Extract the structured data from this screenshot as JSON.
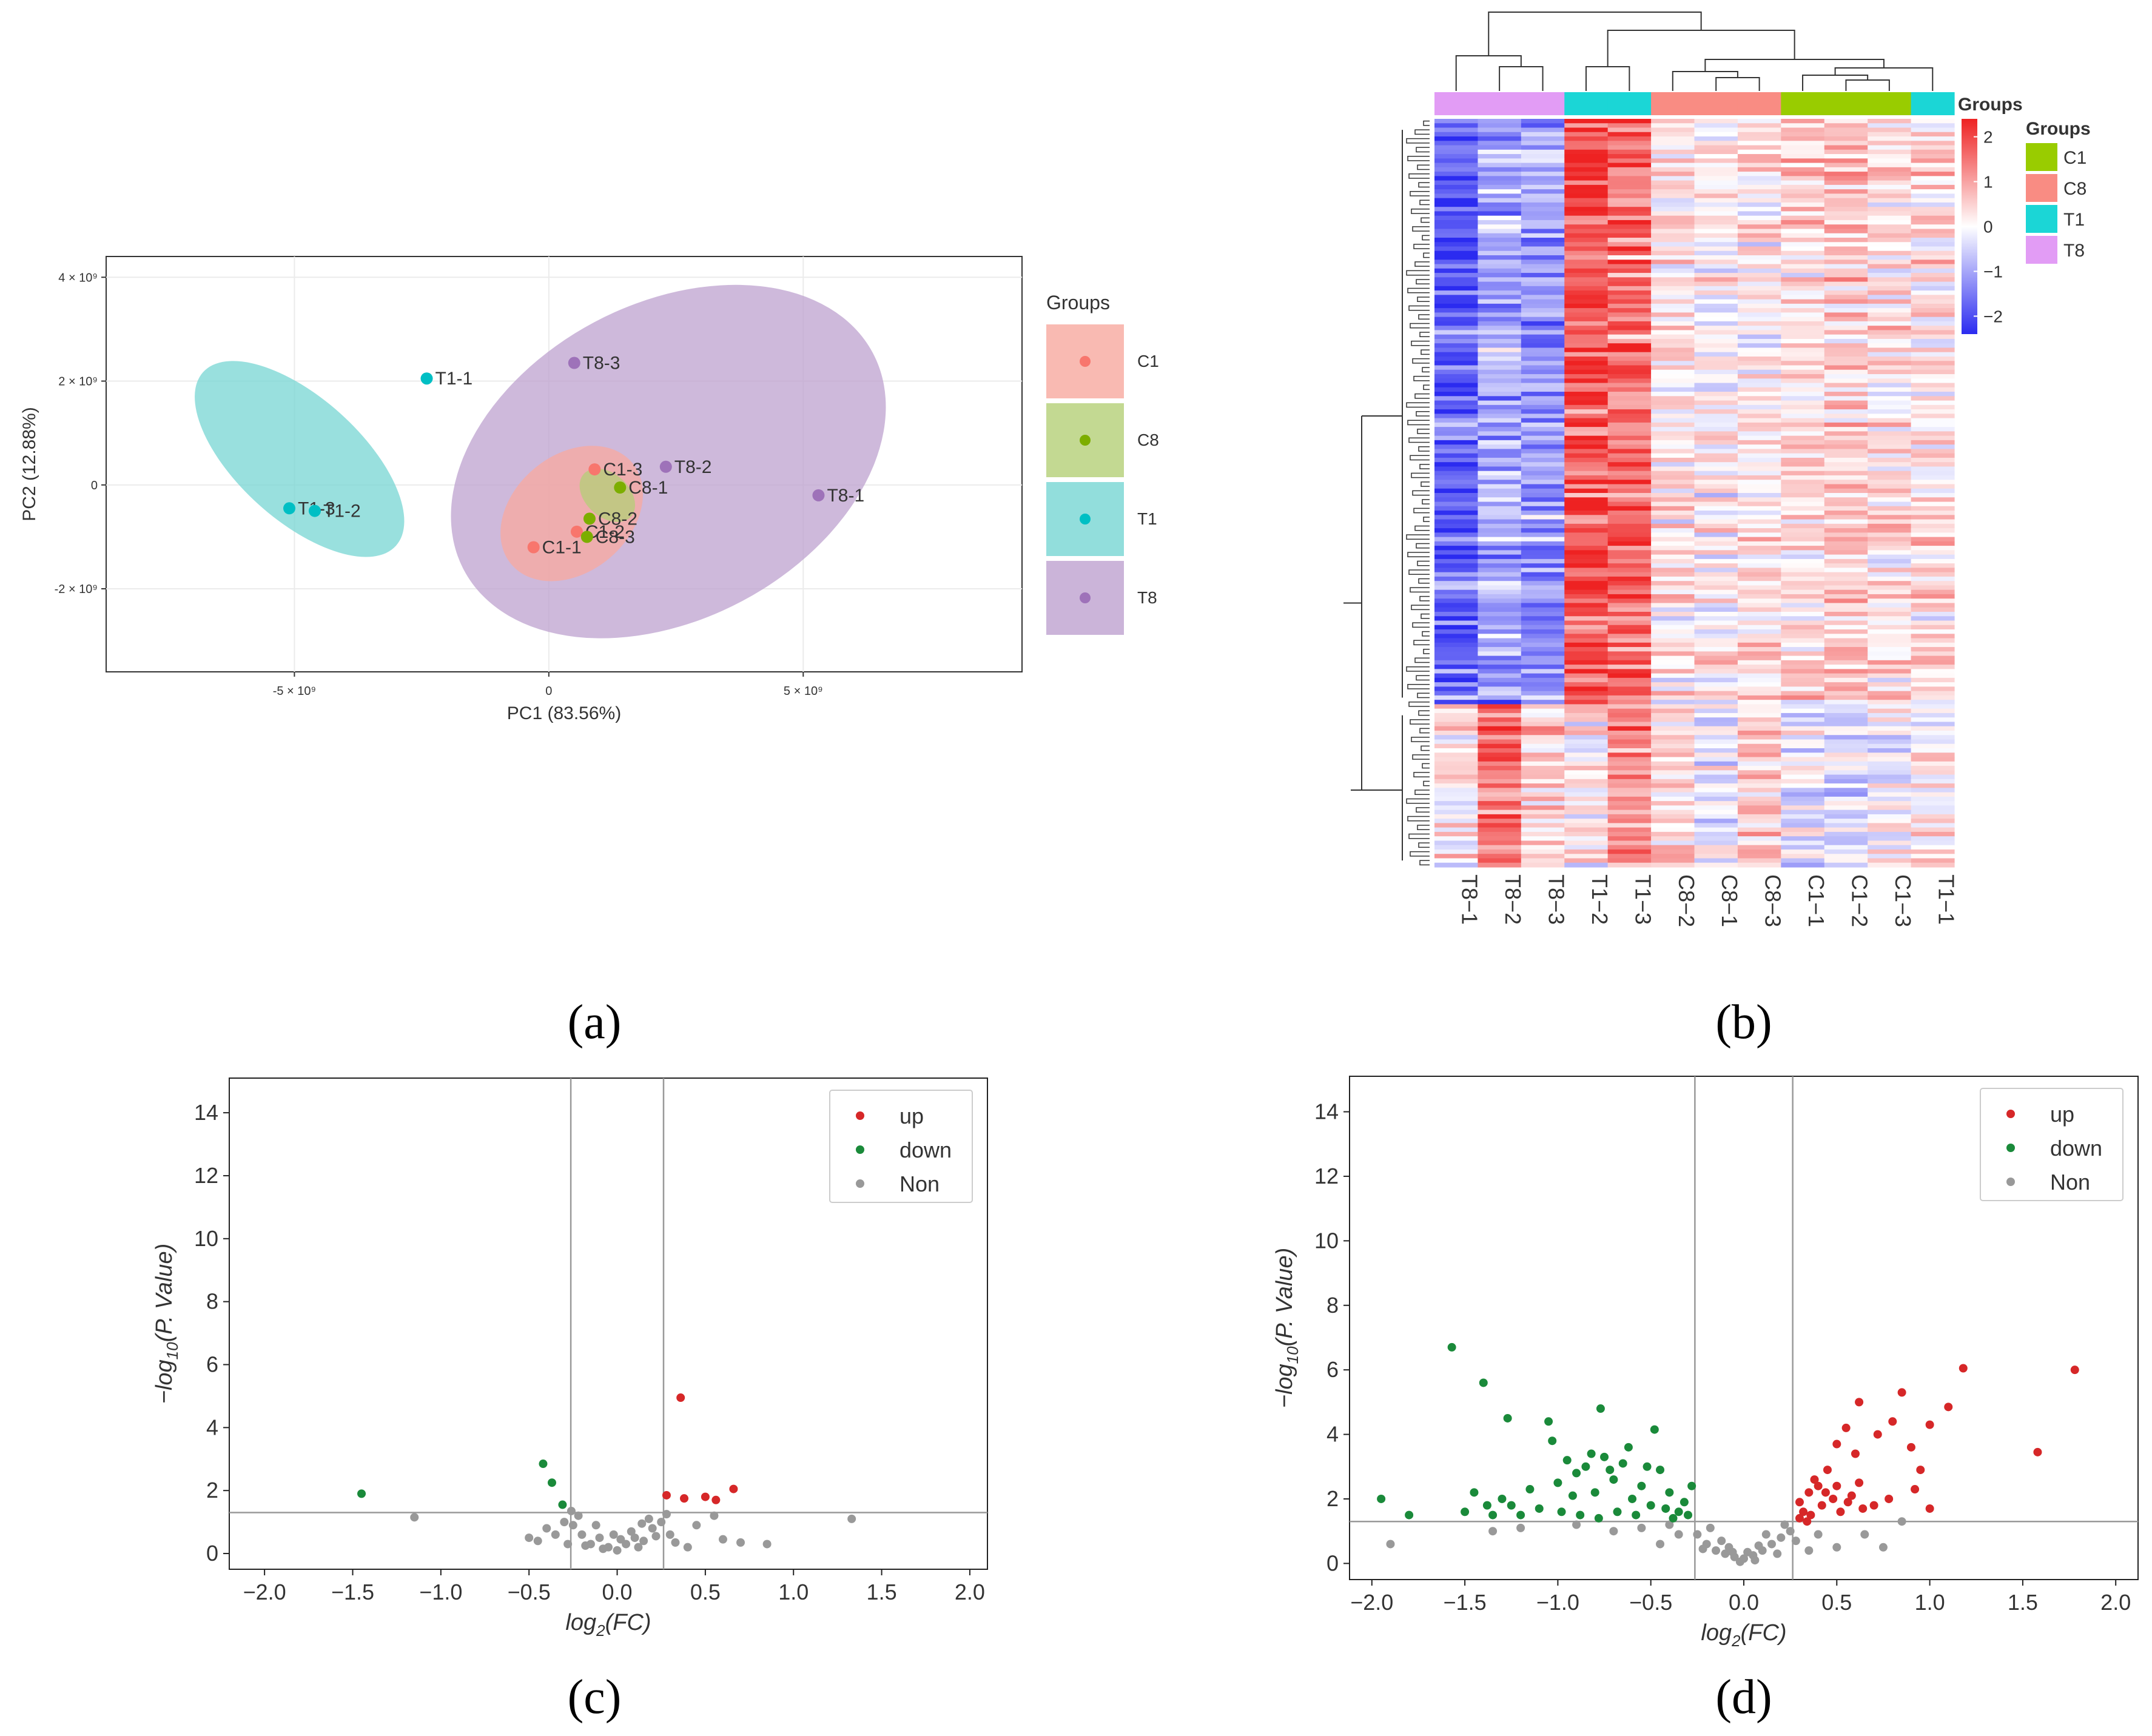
{
  "panels": {
    "a": "(a)",
    "b": "(b)",
    "c": "(c)",
    "d": "(d)"
  },
  "chart_data": [
    {
      "id": "pca",
      "type": "scatter",
      "xlabel": "PC1 (83.56%)",
      "ylabel": "PC2 (12.88%)",
      "xlim": [
        -8.7,
        9.3
      ],
      "ylim": [
        -3.6,
        4.4
      ],
      "xticks": [
        {
          "v": -5,
          "label": "-5 × 10⁹"
        },
        {
          "v": 0,
          "label": "0"
        },
        {
          "v": 5,
          "label": "5 × 10⁹"
        }
      ],
      "yticks": [
        {
          "v": 4,
          "label": "4 × 10⁹"
        },
        {
          "v": 2,
          "label": "2 × 10⁹"
        },
        {
          "v": 0,
          "label": "0"
        },
        {
          "v": -2,
          "label": "-2 × 10⁹"
        }
      ],
      "legend_title": "Groups",
      "groups": [
        {
          "name": "C1",
          "color": "#F8766D",
          "fill": "#F8A99F"
        },
        {
          "name": "C8",
          "color": "#7CAE00",
          "fill": "#B4CF77"
        },
        {
          "name": "T1",
          "color": "#00BFC4",
          "fill": "#77D6D3"
        },
        {
          "name": "T8",
          "color": "#9E72B9",
          "fill": "#BEA1CF"
        }
      ],
      "ellipses": [
        {
          "group": "T8",
          "cx": 2.35,
          "cy": 0.45,
          "rx": 9.1,
          "ry": 1.6,
          "angle": -28.0
        },
        {
          "group": "T1",
          "cx": -4.9,
          "cy": 0.5,
          "rx": 5.1,
          "ry": 0.62,
          "angle": 42.0
        },
        {
          "group": "C1",
          "cx": 0.45,
          "cy": -0.55,
          "rx": 2.3,
          "ry": 0.8,
          "angle": 50.0
        },
        {
          "group": "C8",
          "cx": 1.15,
          "cy": -0.2,
          "rx": 1.25,
          "ry": 0.22,
          "angle": 42.0
        }
      ],
      "points": [
        {
          "label": "T1-1",
          "group": "T1",
          "x": -2.4,
          "y": 2.05
        },
        {
          "label": "T1-3",
          "group": "T1",
          "x": -5.1,
          "y": -0.45
        },
        {
          "label": "T1-2",
          "group": "T1",
          "x": -4.6,
          "y": -0.5
        },
        {
          "label": "T8-3",
          "group": "T8",
          "x": 0.5,
          "y": 2.35
        },
        {
          "label": "T8-2",
          "group": "T8",
          "x": 2.3,
          "y": 0.35
        },
        {
          "label": "T8-1",
          "group": "T8",
          "x": 5.3,
          "y": -0.2
        },
        {
          "label": "C1-3",
          "group": "C1",
          "x": 0.9,
          "y": 0.3
        },
        {
          "label": "C1-1",
          "group": "C1",
          "x": -0.3,
          "y": -1.2
        },
        {
          "label": "C1-2",
          "group": "C1",
          "x": 0.55,
          "y": -0.9
        },
        {
          "label": "C8-1",
          "group": "C8",
          "x": 1.4,
          "y": -0.05
        },
        {
          "label": "C8-2",
          "group": "C8",
          "x": 0.8,
          "y": -0.65
        },
        {
          "label": "C8-3",
          "group": "C8",
          "x": 0.75,
          "y": -1.0
        }
      ]
    },
    {
      "id": "heatmap",
      "type": "heatmap",
      "columns": [
        "T8−1",
        "T8−2",
        "T8−3",
        "T1−2",
        "T1−3",
        "C8−2",
        "C8−1",
        "C8−3",
        "C1−1",
        "C1−2",
        "C1−3",
        "T1−1"
      ],
      "column_groups": [
        "T8",
        "T8",
        "T8",
        "T1",
        "T1",
        "C8",
        "C8",
        "C8",
        "C1",
        "C1",
        "C1",
        "T1"
      ],
      "n_rows": 170,
      "row_cluster_split": 0.78,
      "block_profile_top": [
        -1.9,
        -1.1,
        -1.2,
        1.9,
        1.7,
        0.2,
        0.1,
        0.2,
        0.4,
        0.5,
        0.3,
        0.3
      ],
      "block_profile_bottom": [
        0.2,
        1.6,
        0.5,
        0.1,
        1.2,
        0.4,
        -0.2,
        0.5,
        -0.3,
        -0.4,
        -0.1,
        0.2
      ],
      "color_scale": {
        "low": "#2B2BF0",
        "mid": "#FFFFFF",
        "high": "#EE2222",
        "min": -2.4,
        "max": 2.4
      },
      "colorbar_title": "Groups",
      "colorbar_ticks": [
        2,
        1,
        0,
        -1,
        -2
      ],
      "colorbar_tick_labels": [
        "2",
        "1",
        "0",
        "−1",
        "−2"
      ],
      "legend_title": "Groups",
      "legend": [
        {
          "name": "C1",
          "color": "#99CC00"
        },
        {
          "name": "C8",
          "color": "#F98C83"
        },
        {
          "name": "T1",
          "color": "#1BD6D6"
        },
        {
          "name": "T8",
          "color": "#E29CF5"
        }
      ]
    },
    {
      "id": "volcano-c",
      "type": "scatter",
      "xlabel_main": "log",
      "xlabel_sub": "2",
      "xlabel_tail": "(FC)",
      "ylabel_pre": "−log",
      "ylabel_sub": "10",
      "ylabel_tail": "(P. Value)",
      "xlim": [
        -2.2,
        2.1
      ],
      "ylim": [
        -0.5,
        15.1
      ],
      "xticks": [
        -2.0,
        -1.5,
        -1.0,
        -0.5,
        0.0,
        0.5,
        1.0,
        1.5,
        2.0
      ],
      "xtick_labels": [
        "−2.0",
        "−1.5",
        "−1.0",
        "−0.5",
        "0.0",
        "0.5",
        "1.0",
        "1.5",
        "2.0"
      ],
      "yticks": [
        0,
        2,
        4,
        6,
        8,
        10,
        12,
        14
      ],
      "ytick_labels": [
        "0",
        "2",
        "4",
        "6",
        "8",
        "10",
        "12",
        "14"
      ],
      "vlines": [
        -0.263,
        0.263
      ],
      "hline": 1.3,
      "legend": [
        {
          "name": "up",
          "color": "#D62728"
        },
        {
          "name": "down",
          "color": "#1A8A3A"
        },
        {
          "name": "Non",
          "color": "#999999"
        }
      ],
      "up": [
        [
          0.36,
          4.95
        ],
        [
          0.66,
          2.05
        ],
        [
          0.5,
          1.8
        ],
        [
          0.56,
          1.7
        ],
        [
          0.28,
          1.85
        ],
        [
          0.38,
          1.75
        ]
      ],
      "down": [
        [
          -1.45,
          1.9
        ],
        [
          -0.42,
          2.85
        ],
        [
          -0.37,
          2.25
        ],
        [
          -0.31,
          1.55
        ]
      ],
      "non": [
        [
          -1.15,
          1.15
        ],
        [
          1.33,
          1.1
        ],
        [
          0.7,
          0.35
        ],
        [
          0.85,
          0.3
        ],
        [
          -0.5,
          0.5
        ],
        [
          -0.45,
          0.4
        ],
        [
          0.55,
          1.2
        ],
        [
          0.6,
          0.45
        ],
        [
          -0.3,
          1.0
        ],
        [
          -0.25,
          0.9
        ],
        [
          -0.2,
          0.6
        ],
        [
          -0.15,
          0.3
        ],
        [
          -0.1,
          0.5
        ],
        [
          -0.05,
          0.2
        ],
        [
          0.0,
          0.1
        ],
        [
          0.05,
          0.3
        ],
        [
          0.1,
          0.5
        ],
        [
          0.15,
          0.4
        ],
        [
          0.2,
          0.8
        ],
        [
          0.25,
          1.0
        ],
        [
          0.3,
          0.6
        ],
        [
          -0.28,
          0.3
        ],
        [
          -0.22,
          1.2
        ],
        [
          -0.12,
          0.9
        ],
        [
          -0.08,
          0.15
        ],
        [
          0.02,
          0.45
        ],
        [
          0.08,
          0.7
        ],
        [
          0.12,
          0.2
        ],
        [
          0.18,
          1.1
        ],
        [
          0.22,
          0.55
        ],
        [
          0.33,
          0.35
        ],
        [
          0.4,
          0.2
        ],
        [
          -0.35,
          0.6
        ],
        [
          -0.4,
          0.8
        ],
        [
          0.45,
          0.9
        ],
        [
          -0.18,
          0.25
        ],
        [
          0.28,
          1.25
        ],
        [
          -0.02,
          0.6
        ],
        [
          0.14,
          0.95
        ],
        [
          -0.26,
          1.35
        ]
      ]
    },
    {
      "id": "volcano-d",
      "type": "scatter",
      "xlabel_main": "log",
      "xlabel_sub": "2",
      "xlabel_tail": "(FC)",
      "ylabel_pre": "−log",
      "ylabel_sub": "10",
      "ylabel_tail": "(P. Value)",
      "xlim": [
        -2.12,
        2.12
      ],
      "ylim": [
        -0.5,
        15.1
      ],
      "xticks": [
        -2.0,
        -1.5,
        -1.0,
        -0.5,
        0.0,
        0.5,
        1.0,
        1.5,
        2.0
      ],
      "xtick_labels": [
        "−2.0",
        "−1.5",
        "−1.0",
        "−0.5",
        "0.0",
        "0.5",
        "1.0",
        "1.5",
        "2.0"
      ],
      "yticks": [
        0,
        2,
        4,
        6,
        8,
        10,
        12,
        14
      ],
      "ytick_labels": [
        "0",
        "2",
        "4",
        "6",
        "8",
        "10",
        "12",
        "14"
      ],
      "vlines": [
        -0.263,
        0.263
      ],
      "hline": 1.3,
      "legend": [
        {
          "name": "up",
          "color": "#D62728"
        },
        {
          "name": "down",
          "color": "#1A8A3A"
        },
        {
          "name": "Non",
          "color": "#999999"
        }
      ],
      "up": [
        [
          1.78,
          6.0
        ],
        [
          1.58,
          3.45
        ],
        [
          1.18,
          6.05
        ],
        [
          1.1,
          4.85
        ],
        [
          1.0,
          4.3
        ],
        [
          0.85,
          5.3
        ],
        [
          0.8,
          4.4
        ],
        [
          0.72,
          4.0
        ],
        [
          0.62,
          5.0
        ],
        [
          0.55,
          4.2
        ],
        [
          0.5,
          3.7
        ],
        [
          0.6,
          3.4
        ],
        [
          0.9,
          3.6
        ],
        [
          0.95,
          2.9
        ],
        [
          0.92,
          2.3
        ],
        [
          1.0,
          1.7
        ],
        [
          0.7,
          1.8
        ],
        [
          0.78,
          2.0
        ],
        [
          0.45,
          2.9
        ],
        [
          0.4,
          2.4
        ],
        [
          0.35,
          2.2
        ],
        [
          0.3,
          1.9
        ],
        [
          0.32,
          1.6
        ],
        [
          0.36,
          1.5
        ],
        [
          0.42,
          1.8
        ],
        [
          0.48,
          2.0
        ],
        [
          0.52,
          1.6
        ],
        [
          0.56,
          1.9
        ],
        [
          0.38,
          2.6
        ],
        [
          0.44,
          2.2
        ],
        [
          0.5,
          2.4
        ],
        [
          0.58,
          2.1
        ],
        [
          0.64,
          1.7
        ],
        [
          0.3,
          1.4
        ],
        [
          0.34,
          1.3
        ],
        [
          0.62,
          2.5
        ]
      ],
      "down": [
        [
          -1.57,
          6.7
        ],
        [
          -1.4,
          5.6
        ],
        [
          -1.27,
          4.5
        ],
        [
          -1.05,
          4.4
        ],
        [
          -0.77,
          4.8
        ],
        [
          -0.48,
          4.15
        ],
        [
          -1.95,
          2.0
        ],
        [
          -1.8,
          1.5
        ],
        [
          -1.5,
          1.6
        ],
        [
          -1.45,
          2.2
        ],
        [
          -1.38,
          1.8
        ],
        [
          -1.3,
          2.0
        ],
        [
          -1.2,
          1.5
        ],
        [
          -1.1,
          1.7
        ],
        [
          -1.03,
          3.8
        ],
        [
          -1.0,
          2.5
        ],
        [
          -0.95,
          3.2
        ],
        [
          -0.9,
          2.8
        ],
        [
          -0.85,
          3.0
        ],
        [
          -0.8,
          2.2
        ],
        [
          -0.75,
          3.3
        ],
        [
          -0.7,
          2.6
        ],
        [
          -0.65,
          3.1
        ],
        [
          -0.6,
          2.0
        ],
        [
          -0.55,
          2.4
        ],
        [
          -0.5,
          1.8
        ],
        [
          -0.45,
          2.9
        ],
        [
          -0.4,
          2.2
        ],
        [
          -0.35,
          1.6
        ],
        [
          -0.3,
          1.5
        ],
        [
          -0.28,
          2.4
        ],
        [
          -0.32,
          1.9
        ],
        [
          -0.38,
          1.4
        ],
        [
          -0.42,
          1.7
        ],
        [
          -0.58,
          1.5
        ],
        [
          -0.68,
          1.6
        ],
        [
          -0.78,
          1.4
        ],
        [
          -0.88,
          1.5
        ],
        [
          -0.98,
          1.6
        ],
        [
          -1.15,
          2.3
        ],
        [
          -1.25,
          1.8
        ],
        [
          -1.35,
          1.5
        ],
        [
          -0.62,
          3.6
        ],
        [
          -0.72,
          2.9
        ],
        [
          -0.52,
          3.0
        ],
        [
          -0.82,
          3.4
        ],
        [
          -0.92,
          2.1
        ]
      ],
      "non": [
        [
          -1.9,
          0.6
        ],
        [
          -1.35,
          1.0
        ],
        [
          -1.2,
          1.1
        ],
        [
          -0.9,
          1.2
        ],
        [
          -0.7,
          1.0
        ],
        [
          -0.55,
          1.1
        ],
        [
          0.75,
          0.5
        ],
        [
          0.85,
          1.3
        ],
        [
          0.65,
          0.9
        ],
        [
          -0.25,
          0.9
        ],
        [
          -0.2,
          0.6
        ],
        [
          -0.15,
          0.4
        ],
        [
          -0.1,
          0.3
        ],
        [
          -0.05,
          0.2
        ],
        [
          0.0,
          0.15
        ],
        [
          0.05,
          0.25
        ],
        [
          0.1,
          0.4
        ],
        [
          0.15,
          0.6
        ],
        [
          0.2,
          0.8
        ],
        [
          0.25,
          1.0
        ],
        [
          -0.18,
          1.1
        ],
        [
          -0.12,
          0.7
        ],
        [
          -0.08,
          0.5
        ],
        [
          0.02,
          0.35
        ],
        [
          0.08,
          0.55
        ],
        [
          0.12,
          0.9
        ],
        [
          0.18,
          0.3
        ],
        [
          0.22,
          1.2
        ],
        [
          -0.22,
          0.45
        ],
        [
          -0.02,
          0.05
        ],
        [
          0.06,
          0.1
        ],
        [
          -0.06,
          0.35
        ],
        [
          0.28,
          0.7
        ],
        [
          0.4,
          0.9
        ],
        [
          0.5,
          0.5
        ],
        [
          -0.35,
          0.9
        ],
        [
          -0.45,
          0.6
        ],
        [
          -0.4,
          1.2
        ],
        [
          0.35,
          0.4
        ]
      ]
    }
  ]
}
